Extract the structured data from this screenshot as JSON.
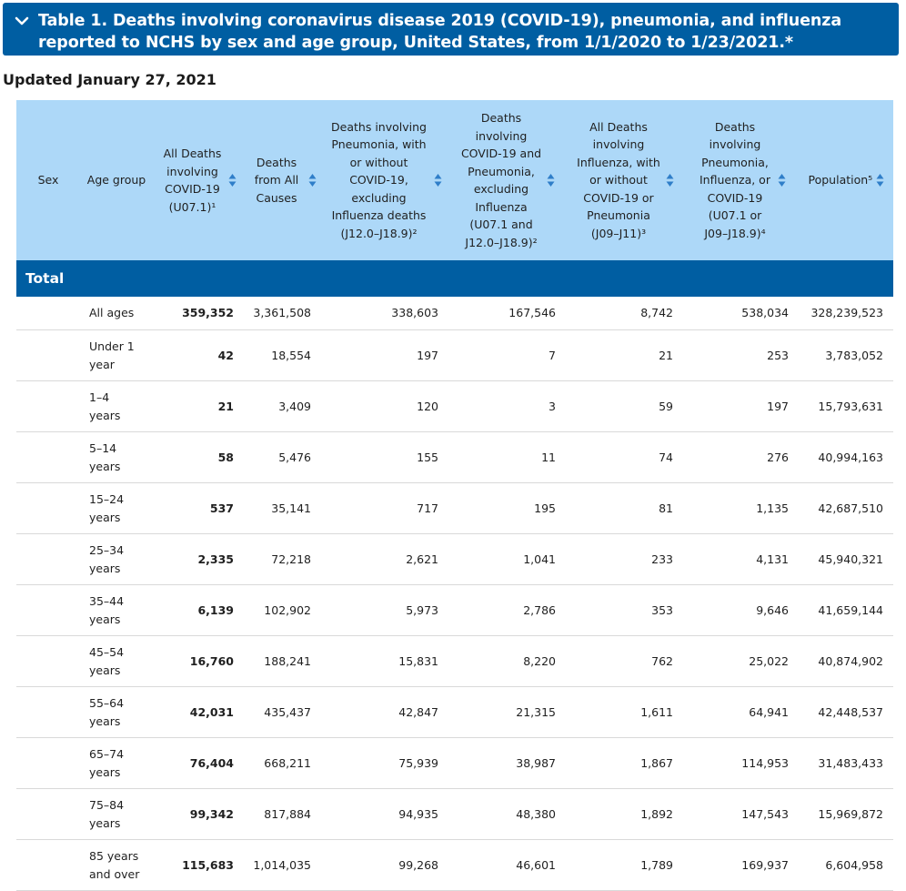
{
  "banner": {
    "title": "Table 1. Deaths involving coronavirus disease 2019 (COVID-19), pneumonia, and influenza reported to NCHS by sex and age group, United States, from 1/1/2020 to 1/23/2021.*",
    "toggle_icon": "chevron-down-icon"
  },
  "updated": "Updated January 27, 2021",
  "colors": {
    "banner": "#005ea2",
    "header_bg": "#add8f8",
    "sort_arrow": "#2f7ec9"
  },
  "table": {
    "headers": [
      {
        "key": "sex",
        "label": "Sex",
        "sortable": false
      },
      {
        "key": "age",
        "label": "Age group",
        "sortable": false
      },
      {
        "key": "covid",
        "label": "All Deaths involving COVID-19 (U07.1)¹",
        "sortable": true
      },
      {
        "key": "all_causes",
        "label": "Deaths from All Causes",
        "sortable": true
      },
      {
        "key": "pneumonia",
        "label": "Deaths involving Pneumonia, with or without COVID-19, excluding Influenza deaths (J12.0–J18.9)²",
        "sortable": true
      },
      {
        "key": "covid_pneumonia",
        "label": "Deaths involving COVID-19 and Pneumonia, excluding Influenza (U07.1 and J12.0–J18.9)²",
        "sortable": true
      },
      {
        "key": "influenza",
        "label": "All Deaths involving Influenza, with or without COVID-19 or Pneumonia (J09–J11)³",
        "sortable": true
      },
      {
        "key": "pic",
        "label": "Deaths involving Pneumonia, Influenza, or COVID-19 (U07.1 or J09–J18.9)⁴",
        "sortable": true
      },
      {
        "key": "population",
        "label": "Population⁵",
        "sortable": true
      }
    ],
    "section_label": "Total",
    "rows": [
      {
        "sex": "",
        "age": "All ages",
        "covid": "359,352",
        "all_causes": "3,361,508",
        "pneumonia": "338,603",
        "covid_pneumonia": "167,546",
        "influenza": "8,742",
        "pic": "538,034",
        "population": "328,239,523"
      },
      {
        "sex": "",
        "age": "Under 1 year",
        "covid": "42",
        "all_causes": "18,554",
        "pneumonia": "197",
        "covid_pneumonia": "7",
        "influenza": "21",
        "pic": "253",
        "population": "3,783,052"
      },
      {
        "sex": "",
        "age": "1–4 years",
        "covid": "21",
        "all_causes": "3,409",
        "pneumonia": "120",
        "covid_pneumonia": "3",
        "influenza": "59",
        "pic": "197",
        "population": "15,793,631"
      },
      {
        "sex": "",
        "age": "5–14 years",
        "covid": "58",
        "all_causes": "5,476",
        "pneumonia": "155",
        "covid_pneumonia": "11",
        "influenza": "74",
        "pic": "276",
        "population": "40,994,163"
      },
      {
        "sex": "",
        "age": "15–24 years",
        "covid": "537",
        "all_causes": "35,141",
        "pneumonia": "717",
        "covid_pneumonia": "195",
        "influenza": "81",
        "pic": "1,135",
        "population": "42,687,510"
      },
      {
        "sex": "",
        "age": "25–34 years",
        "covid": "2,335",
        "all_causes": "72,218",
        "pneumonia": "2,621",
        "covid_pneumonia": "1,041",
        "influenza": "233",
        "pic": "4,131",
        "population": "45,940,321"
      },
      {
        "sex": "",
        "age": "35–44 years",
        "covid": "6,139",
        "all_causes": "102,902",
        "pneumonia": "5,973",
        "covid_pneumonia": "2,786",
        "influenza": "353",
        "pic": "9,646",
        "population": "41,659,144"
      },
      {
        "sex": "",
        "age": "45–54 years",
        "covid": "16,760",
        "all_causes": "188,241",
        "pneumonia": "15,831",
        "covid_pneumonia": "8,220",
        "influenza": "762",
        "pic": "25,022",
        "population": "40,874,902"
      },
      {
        "sex": "",
        "age": "55–64 years",
        "covid": "42,031",
        "all_causes": "435,437",
        "pneumonia": "42,847",
        "covid_pneumonia": "21,315",
        "influenza": "1,611",
        "pic": "64,941",
        "population": "42,448,537"
      },
      {
        "sex": "",
        "age": "65–74 years",
        "covid": "76,404",
        "all_causes": "668,211",
        "pneumonia": "75,939",
        "covid_pneumonia": "38,987",
        "influenza": "1,867",
        "pic": "114,953",
        "population": "31,483,433"
      },
      {
        "sex": "",
        "age": "75–84 years",
        "covid": "99,342",
        "all_causes": "817,884",
        "pneumonia": "94,935",
        "covid_pneumonia": "48,380",
        "influenza": "1,892",
        "pic": "147,543",
        "population": "15,969,872"
      },
      {
        "sex": "",
        "age": "85 years and over",
        "covid": "115,683",
        "all_causes": "1,014,035",
        "pneumonia": "99,268",
        "covid_pneumonia": "46,601",
        "influenza": "1,789",
        "pic": "169,937",
        "population": "6,604,958"
      }
    ]
  }
}
